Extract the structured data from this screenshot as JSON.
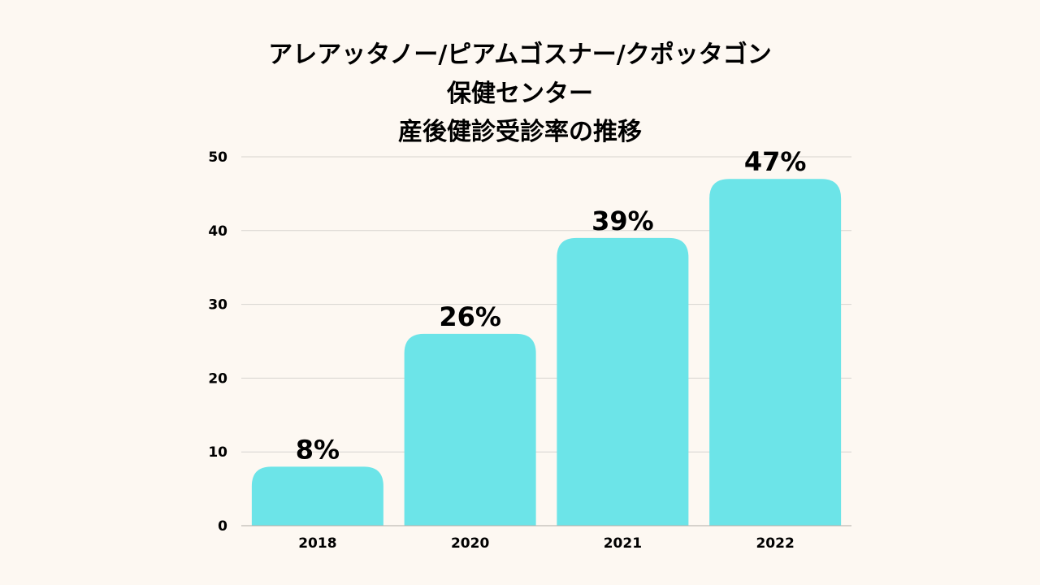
{
  "chart_data": {
    "type": "bar",
    "title_lines": [
      "アレアッタノー/ピアムゴスナー/クポッタゴン",
      "保健センター",
      "産後健診受診率の推移"
    ],
    "categories": [
      "2018",
      "2020",
      "2021",
      "2022"
    ],
    "values": [
      8,
      26,
      39,
      47
    ],
    "data_labels": [
      "8%",
      "26%",
      "39%",
      "47%"
    ],
    "y_ticks": [
      "0",
      "10",
      "20",
      "30",
      "40",
      "50"
    ],
    "ylim": [
      0,
      50
    ],
    "xlabel": "",
    "ylabel": "",
    "grid": true,
    "legend": "none",
    "colors": {
      "bar": "#6ce4e8",
      "grid": "#d6d3cf",
      "axis": "#b0aca7",
      "text": "#000000",
      "background": "#fdf8f2"
    }
  }
}
